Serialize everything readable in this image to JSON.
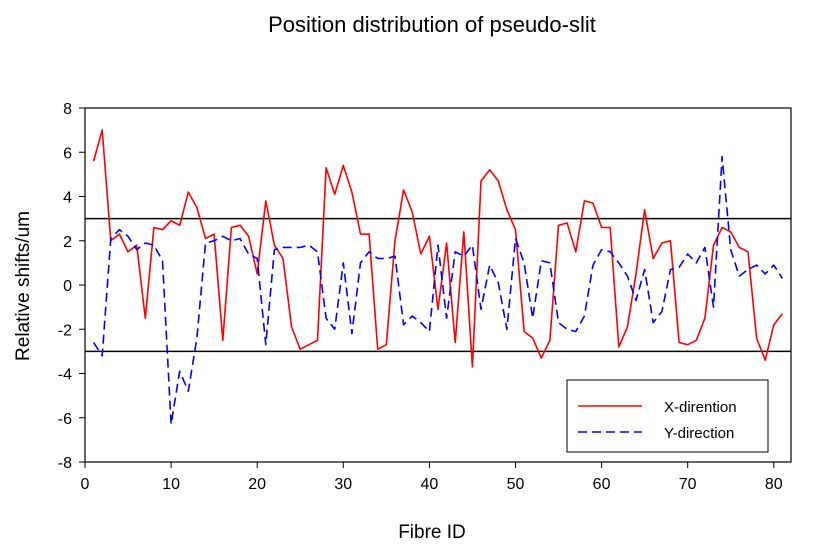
{
  "chart_data": {
    "type": "line",
    "title": "Position distribution of pseudo-slit",
    "xlabel": "Fibre ID",
    "ylabel": "Relative shifts/um",
    "xlim": [
      0,
      82
    ],
    "ylim": [
      -8,
      8
    ],
    "xticks": [
      0,
      10,
      20,
      30,
      40,
      50,
      60,
      70,
      80
    ],
    "yticks": [
      -8,
      -6,
      -4,
      -2,
      0,
      2,
      4,
      6,
      8
    ],
    "reference_lines": [
      3,
      -3
    ],
    "legend": {
      "position": "bottom-right"
    },
    "series": [
      {
        "name": "X-dirention",
        "color": "#ff0000",
        "dash": "solid",
        "x": [
          1,
          2,
          3,
          4,
          5,
          6,
          7,
          8,
          9,
          10,
          11,
          12,
          13,
          14,
          15,
          16,
          17,
          18,
          19,
          20,
          21,
          22,
          23,
          24,
          25,
          26,
          27,
          28,
          29,
          30,
          31,
          32,
          33,
          34,
          35,
          36,
          37,
          38,
          39,
          40,
          41,
          42,
          43,
          44,
          45,
          46,
          47,
          48,
          49,
          50,
          51,
          52,
          53,
          54,
          55,
          56,
          57,
          58,
          59,
          60,
          61,
          62,
          63,
          64,
          65,
          66,
          67,
          68,
          69,
          70,
          71,
          72,
          73,
          74,
          75,
          76,
          77,
          78,
          79,
          80,
          81
        ],
        "values": [
          5.6,
          7.0,
          2.0,
          2.3,
          1.5,
          1.8,
          -1.5,
          2.6,
          2.5,
          2.9,
          2.7,
          4.2,
          3.5,
          2.1,
          2.3,
          -2.5,
          2.6,
          2.7,
          2.2,
          0.5,
          3.8,
          1.8,
          1.2,
          -1.9,
          -2.9,
          -2.7,
          -2.5,
          5.3,
          4.1,
          5.4,
          4.2,
          2.3,
          2.3,
          -2.9,
          -2.7,
          2.0,
          4.3,
          3.3,
          1.4,
          2.2,
          -1.1,
          1.9,
          -2.6,
          2.4,
          -3.7,
          4.7,
          5.2,
          4.7,
          3.4,
          2.5,
          -2.1,
          -2.4,
          -3.3,
          -2.5,
          2.7,
          2.8,
          1.5,
          3.8,
          3.7,
          2.6,
          2.6,
          -2.8,
          -1.9,
          0.5,
          3.4,
          1.2,
          1.9,
          2.0,
          -2.6,
          -2.7,
          -2.5,
          -1.5,
          1.8,
          2.6,
          2.4,
          1.7,
          1.5,
          -2.4,
          -3.4,
          -1.8,
          -1.3
        ]
      },
      {
        "name": "Y-direction",
        "color": "#0000ff",
        "dash": "dashed",
        "x": [
          1,
          2,
          3,
          4,
          5,
          6,
          7,
          8,
          9,
          10,
          11,
          12,
          13,
          14,
          15,
          16,
          17,
          18,
          19,
          20,
          21,
          22,
          23,
          24,
          25,
          26,
          27,
          28,
          29,
          30,
          31,
          32,
          33,
          34,
          35,
          36,
          37,
          38,
          39,
          40,
          41,
          42,
          43,
          44,
          45,
          46,
          47,
          48,
          49,
          50,
          51,
          52,
          53,
          54,
          55,
          56,
          57,
          58,
          59,
          60,
          61,
          62,
          63,
          64,
          65,
          66,
          67,
          68,
          69,
          70,
          71,
          72,
          73,
          74,
          75,
          76,
          77,
          78,
          79,
          80,
          81
        ],
        "values": [
          -2.6,
          -3.2,
          2.1,
          2.5,
          2.2,
          1.6,
          1.9,
          1.8,
          1.1,
          -6.3,
          -3.9,
          -4.8,
          -2.4,
          1.9,
          2.0,
          2.2,
          2.0,
          2.1,
          1.4,
          1.2,
          -2.7,
          1.6,
          1.7,
          1.7,
          1.7,
          1.8,
          1.5,
          -1.5,
          -2.0,
          1.0,
          -2.2,
          1.0,
          1.5,
          1.2,
          1.2,
          1.3,
          -1.8,
          -1.4,
          -1.7,
          -2.1,
          1.8,
          -1.5,
          1.5,
          1.3,
          1.8,
          -1.1,
          0.9,
          0.1,
          -2.0,
          2.1,
          1.0,
          -1.5,
          1.1,
          1.0,
          -1.7,
          -2.0,
          -2.1,
          -1.4,
          0.9,
          1.6,
          1.5,
          1.0,
          0.4,
          -0.7,
          0.7,
          -1.7,
          -1.2,
          0.7,
          0.8,
          1.4,
          1.0,
          1.7,
          -1.0,
          5.8,
          1.6,
          0.4,
          0.7,
          0.9,
          0.5,
          0.9,
          0.3
        ]
      }
    ]
  }
}
